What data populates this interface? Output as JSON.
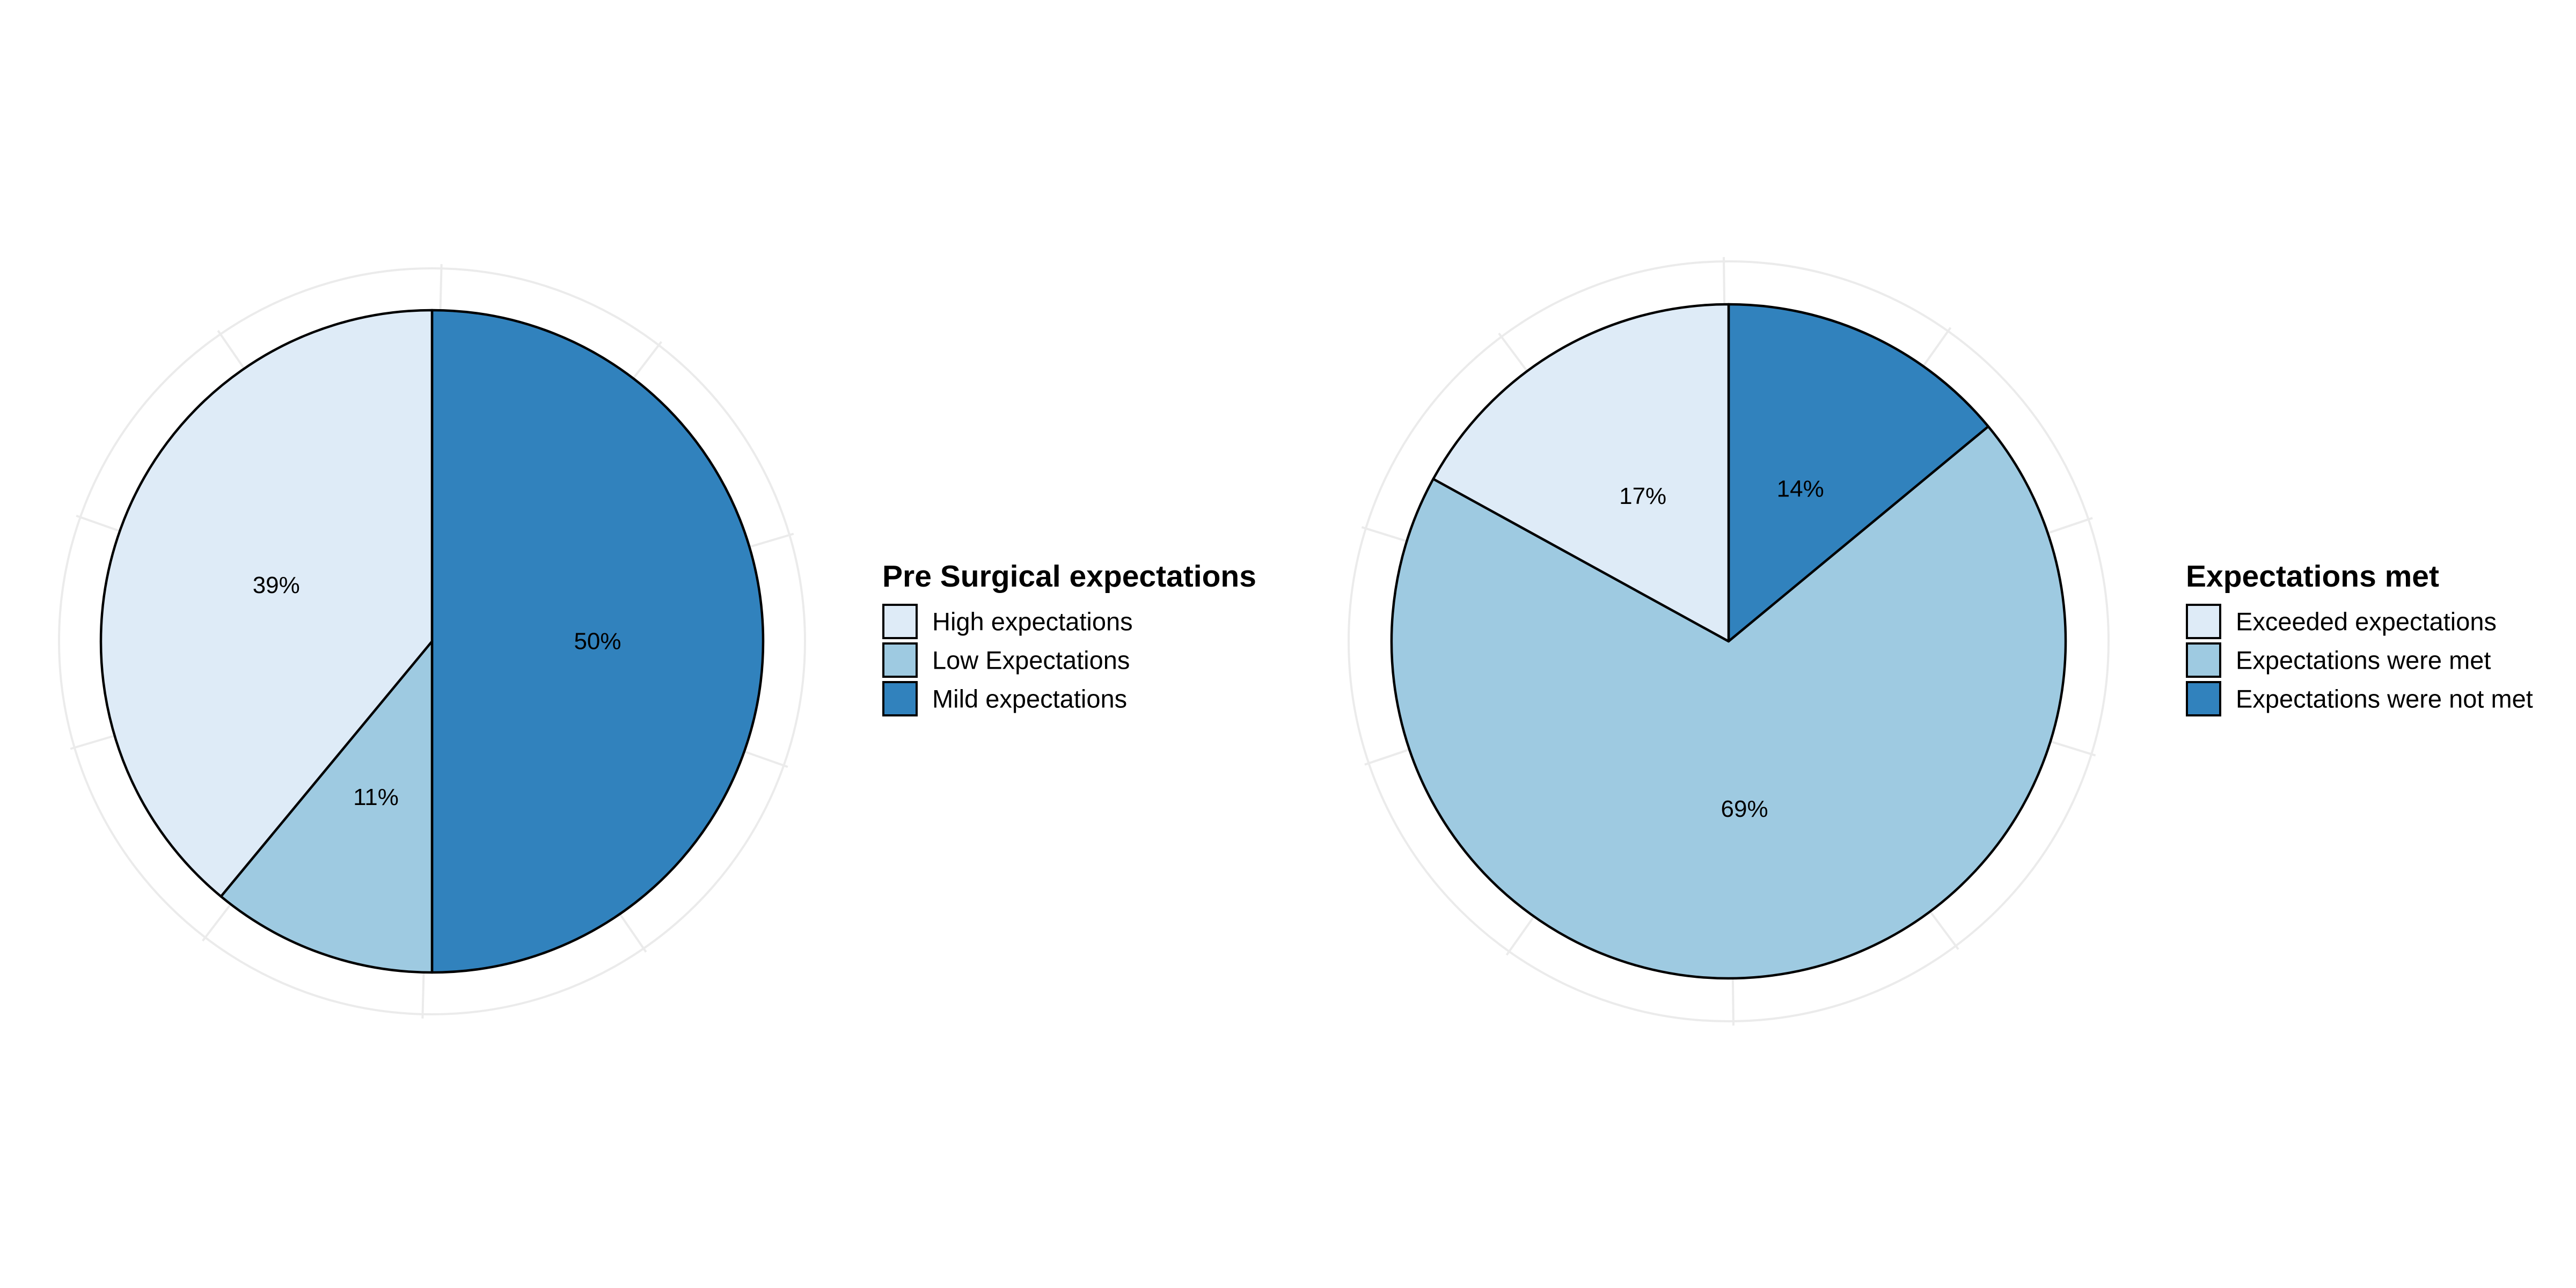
{
  "chart_data": [
    {
      "type": "pie",
      "title": "",
      "legend_title": "Pre Surgical expectations",
      "legend_position": "right",
      "start": "top",
      "direction": "clockwise",
      "outline_color": "#000000",
      "slices": [
        {
          "label": "Mild expectations",
          "value": 50,
          "text": "50%",
          "color": "#3182BD"
        },
        {
          "label": "Low Expectations",
          "value": 11,
          "text": "11%",
          "color": "#9ECAE1"
        },
        {
          "label": "High expectations",
          "value": 39,
          "text": "39%",
          "color": "#DEEBF7"
        }
      ],
      "legend": [
        {
          "label": "High expectations",
          "color": "#DEEBF7"
        },
        {
          "label": "Low Expectations",
          "color": "#9ECAE1"
        },
        {
          "label": "Mild expectations",
          "color": "#3182BD"
        }
      ]
    },
    {
      "type": "pie",
      "title": "",
      "legend_title": "Expectations met",
      "legend_position": "right",
      "start": "top",
      "direction": "clockwise",
      "outline_color": "#000000",
      "slices": [
        {
          "label": "Expectations were not met",
          "value": 14,
          "text": "14%",
          "color": "#3182BD"
        },
        {
          "label": "Expectations were met",
          "value": 69,
          "text": "69%",
          "color": "#9ECAE1"
        },
        {
          "label": "Exceeded expectations",
          "value": 17,
          "text": "17%",
          "color": "#DEEBF7"
        }
      ],
      "legend": [
        {
          "label": "Exceeded expectations",
          "color": "#DEEBF7"
        },
        {
          "label": "Expectations were met",
          "color": "#9ECAE1"
        },
        {
          "label": "Expectations were not met",
          "color": "#3182BD"
        }
      ]
    }
  ]
}
